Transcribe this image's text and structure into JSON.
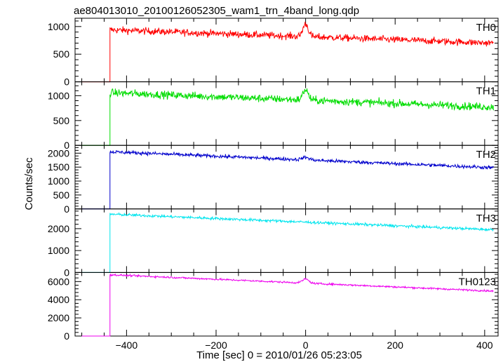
{
  "chart_data": {
    "type": "line",
    "title": "ae804013010_20100126052305_wam1_trn_4band_long.qdp",
    "xlabel": "Time [sec] 0 = 2010/01/26 05:23:05",
    "ylabel": "Counts/sec",
    "xlim": [
      -515,
      430
    ],
    "x_ticks": [
      -400,
      -200,
      0,
      200,
      400
    ],
    "x_tick_labels": [
      "−400",
      "−200",
      "0",
      "200",
      "400"
    ],
    "panels": [
      {
        "name": "TH0",
        "color": "#ff0000",
        "ylim": [
          0,
          1150
        ],
        "y_ticks": [
          0,
          500,
          1000
        ],
        "y_tick_labels": [
          "0",
          "500",
          "1000"
        ],
        "data_range_x": [
          -500,
          420
        ],
        "trigger_time": -437,
        "pre_level": 0,
        "post_start": 940,
        "post_end": 700,
        "noise": 45,
        "burst_peak_time": 0,
        "burst_height": 230,
        "burst_width": 6
      },
      {
        "name": "TH1",
        "color": "#00dd00",
        "ylim": [
          0,
          1280
        ],
        "y_ticks": [
          0,
          500,
          1000
        ],
        "y_tick_labels": [
          "0",
          "500",
          "1000"
        ],
        "data_range_x": [
          -500,
          420
        ],
        "trigger_time": -437,
        "pre_level": 0,
        "post_start": 1060,
        "post_end": 770,
        "noise": 55,
        "burst_peak_time": 0,
        "burst_height": 210,
        "burst_width": 6
      },
      {
        "name": "TH2",
        "color": "#0000cc",
        "ylim": [
          0,
          2280
        ],
        "y_ticks": [
          0,
          500,
          1000,
          1500,
          2000
        ],
        "y_tick_labels": [
          "0",
          "500",
          "1000",
          "1500",
          "2000"
        ],
        "data_range_x": [
          -500,
          420
        ],
        "trigger_time": -437,
        "pre_level": 0,
        "post_start": 2050,
        "post_end": 1480,
        "noise": 45,
        "burst_peak_time": 0,
        "burst_height": 90,
        "burst_width": 8
      },
      {
        "name": "TH3",
        "color": "#00e5ee",
        "ylim": [
          0,
          2900
        ],
        "y_ticks": [
          0,
          1000,
          2000
        ],
        "y_tick_labels": [
          "0",
          "1000",
          "2000"
        ],
        "data_range_x": [
          -500,
          420
        ],
        "trigger_time": -437,
        "pre_level": 0,
        "post_start": 2660,
        "post_end": 1950,
        "noise": 45,
        "burst_peak_time": 0,
        "burst_height": 0,
        "burst_width": 8
      },
      {
        "name": "TH0123",
        "color": "#ee00ee",
        "ylim": [
          0,
          7000
        ],
        "y_ticks": [
          0,
          2000,
          4000,
          6000
        ],
        "y_tick_labels": [
          "0",
          "2000",
          "4000",
          "6000"
        ],
        "data_range_x": [
          -500,
          420
        ],
        "trigger_time": -437,
        "pre_level": 0,
        "post_start": 6750,
        "post_end": 4950,
        "noise": 70,
        "burst_peak_time": 0,
        "burst_height": 450,
        "burst_width": 7
      }
    ]
  }
}
